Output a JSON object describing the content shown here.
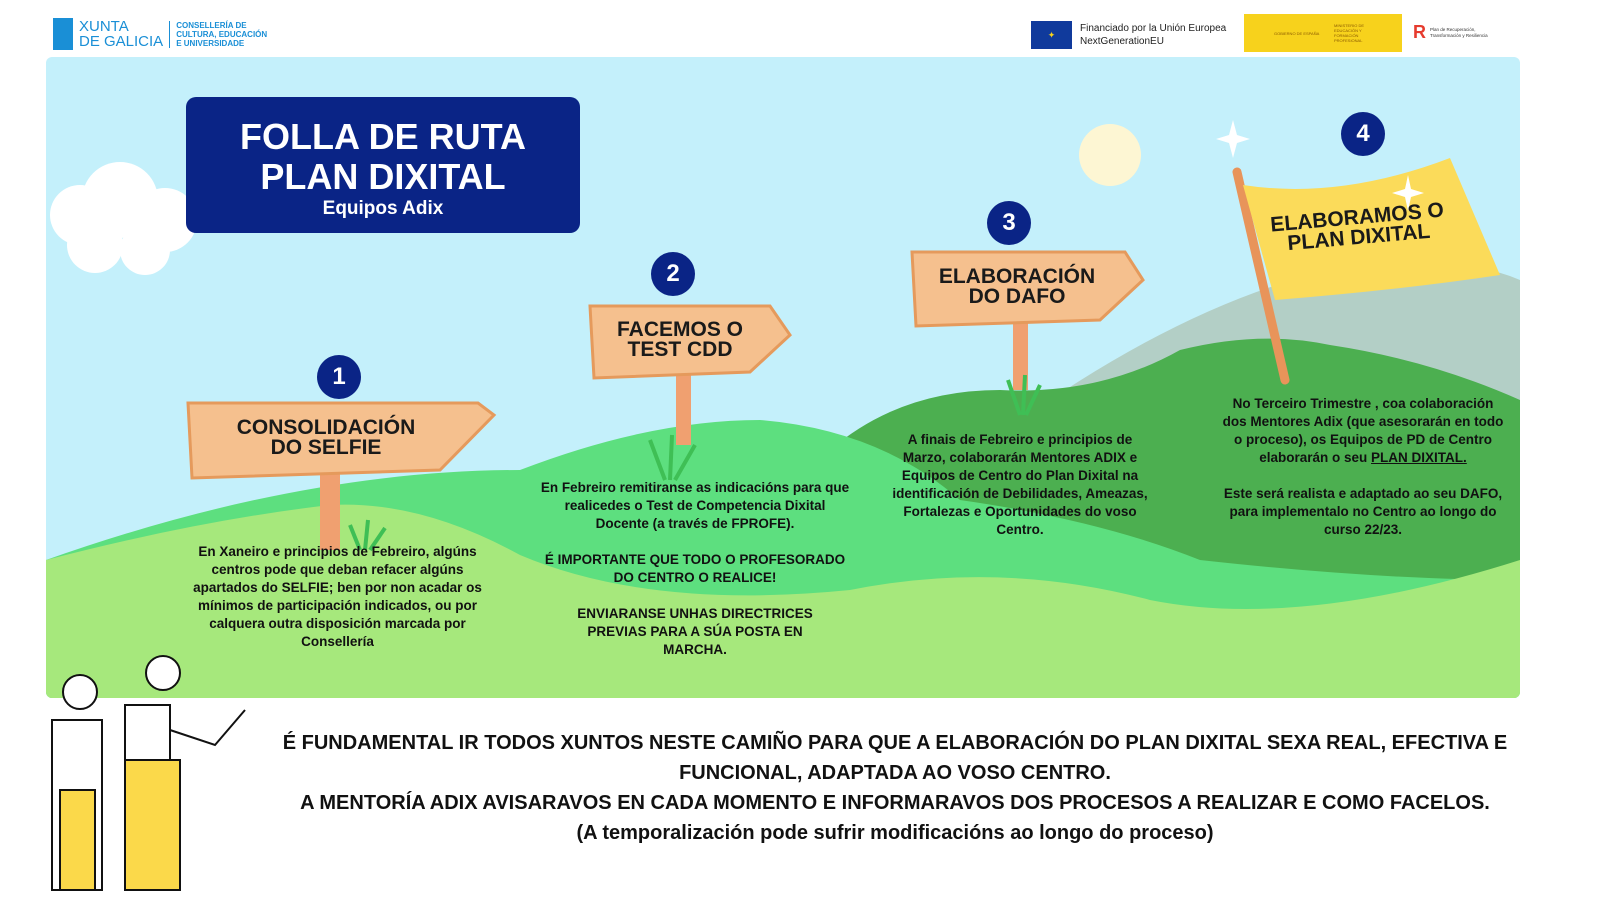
{
  "header": {
    "xunta": {
      "line1": "XUNTA",
      "line2": "DE GALICIA",
      "dept": [
        "CONSELLERÍA DE",
        "CULTURA, EDUCACIÓN",
        "E UNIVERSIDADE"
      ]
    },
    "eu": {
      "line1": "Financiado por la Unión Europea",
      "line2": "NextGenerationEU"
    },
    "gobierno": {
      "a": "GOBIERNO DE ESPAÑA",
      "b": "MINISTERIO DE EDUCACIÓN Y FORMACIÓN PROFESIONAL"
    },
    "prtr": {
      "line1": "Plan de Recuperación,",
      "line2": "Transformación y Resiliencia"
    }
  },
  "title": {
    "line1": "FOLLA DE RUTA",
    "line2": "PLAN DIXITAL",
    "subtitle": "Equipos Adix"
  },
  "colors": {
    "navy": "#0a2486",
    "sky": "#c4f0fb",
    "sign": "#f5c08e",
    "flag": "#fbdb5a",
    "hill_light": "#a6e87c",
    "hill_mid": "#5ddf7f",
    "hill_dark": "#4caf50"
  },
  "steps": [
    {
      "number": "1",
      "sign": [
        "CONSOLIDACIÓN",
        "DO SELFIE"
      ],
      "text": [
        "En Xaneiro e principios de Febreiro, algúns centros pode que deban refacer algúns apartados do SELFIE; ben por non acadar os mínimos de participación indicados, ou por calquera outra disposición marcada por Consellería"
      ]
    },
    {
      "number": "2",
      "sign": [
        "FACEMOS O",
        "TEST CDD"
      ],
      "text": [
        "En Febreiro remitiranse as indicacións para que realicedes o Test de Competencia Dixital Docente (a través de FPROFE).",
        "É IMPORTANTE QUE TODO O PROFESORADO DO CENTRO O REALICE!",
        "ENVIARANSE UNHAS DIRECTRICES PREVIAS PARA A SÚA POSTA EN MARCHA."
      ]
    },
    {
      "number": "3",
      "sign": [
        "ELABORACIÓN",
        "DO DAFO"
      ],
      "text": [
        "A finais de Febreiro e principios de Marzo, colaborarán Mentores ADIX e Equipos de Centro do Plan Dixital na identificación de Debilidades, Ameazas, Fortalezas e Oportunidades do voso Centro."
      ]
    },
    {
      "number": "4",
      "sign": [
        "ELABORAMOS O",
        "PLAN DIXITAL"
      ],
      "text": [
        "No Terceiro Trimestre , coa colaboración dos Mentores Adix (que asesorarán en todo o proceso), os Equipos de PD de Centro elaborarán o seu",
        "PLAN DIXITAL.",
        "Este será realista e adaptado ao seu DAFO, para implementalo no Centro ao longo do curso 22/23."
      ]
    }
  ],
  "footer": {
    "line1": "É FUNDAMENTAL IR TODOS XUNTOS NESTE CAMIÑO PARA QUE A ELABORACIÓN DO PLAN DIXITAL SEXA REAL, EFECTIVA E FUNCIONAL, ADAPTADA AO VOSO CENTRO.",
    "line2": "A MENTORÍA ADIX AVISARAVOS EN CADA MOMENTO E INFORMARAVOS DOS PROCESOS A REALIZAR E COMO FACELOS.",
    "line3": "(A temporalización pode sufrir modificacións ao longo do proceso)"
  }
}
